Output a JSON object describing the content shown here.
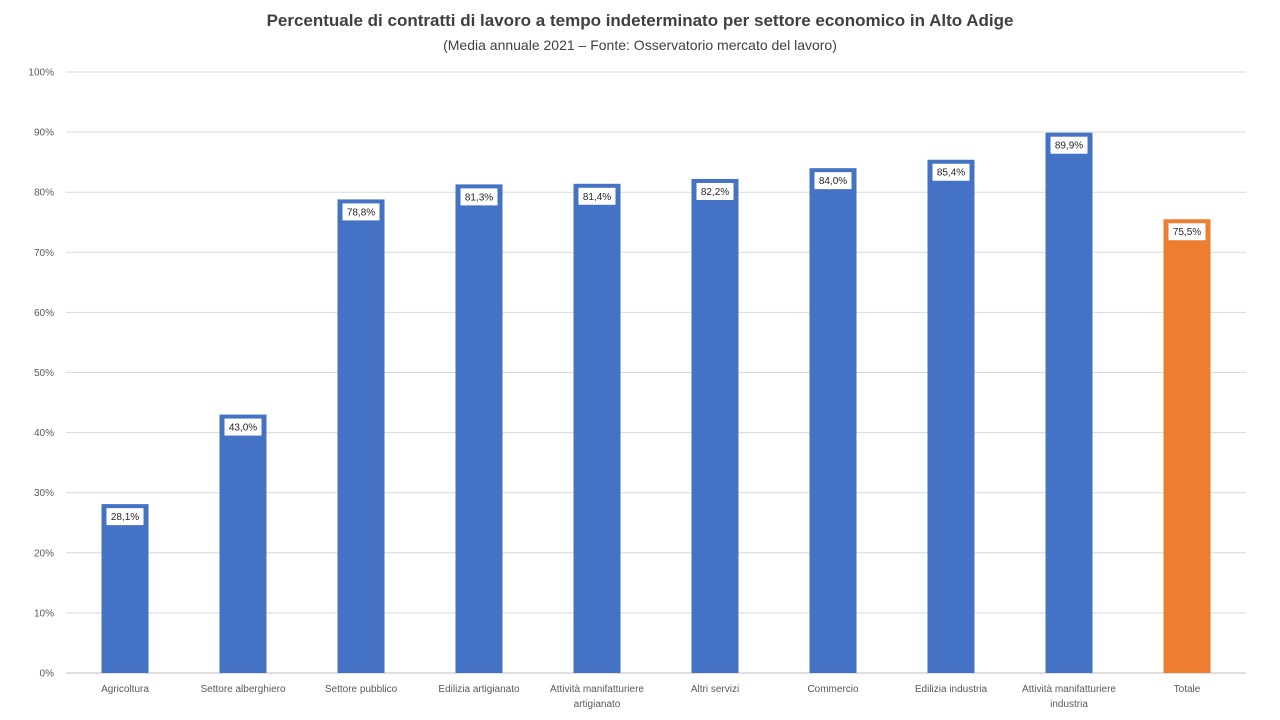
{
  "chart_data": {
    "type": "bar",
    "title": "Percentuale di contratti di lavoro a tempo indeterminato per settore economico in Alto Adige",
    "subtitle": "(Media annuale 2021 – Fonte: Osservatorio mercato del lavoro)",
    "categories": [
      [
        "Agricoltura"
      ],
      [
        "Settore alberghiero"
      ],
      [
        "Settore pubblico"
      ],
      [
        "Edilizia artigianato"
      ],
      [
        "Attività manifatturiere",
        "artigianato"
      ],
      [
        "Altri servizi"
      ],
      [
        "Commercio"
      ],
      [
        "Edilizia industria"
      ],
      [
        "Attività manifatturiere",
        "industria"
      ],
      [
        "Totale"
      ]
    ],
    "values": [
      28.1,
      43.0,
      78.8,
      81.3,
      81.4,
      82.2,
      84.0,
      85.4,
      89.9,
      75.5
    ],
    "data_labels": [
      "28,1%",
      "43,0%",
      "78,8%",
      "81,3%",
      "81,4%",
      "82,2%",
      "84,0%",
      "85,4%",
      "89,9%",
      "75,5%"
    ],
    "bar_colors": [
      "#4472C4",
      "#4472C4",
      "#4472C4",
      "#4472C4",
      "#4472C4",
      "#4472C4",
      "#4472C4",
      "#4472C4",
      "#4472C4",
      "#ED7D31"
    ],
    "ylim": [
      0,
      100
    ],
    "yticks": [
      0,
      10,
      20,
      30,
      40,
      50,
      60,
      70,
      80,
      90,
      100
    ],
    "ytick_labels": [
      "0%",
      "10%",
      "20%",
      "30%",
      "40%",
      "50%",
      "60%",
      "70%",
      "80%",
      "90%",
      "100%"
    ],
    "xlabel": "",
    "ylabel": "",
    "grid": true,
    "legend": "none"
  }
}
